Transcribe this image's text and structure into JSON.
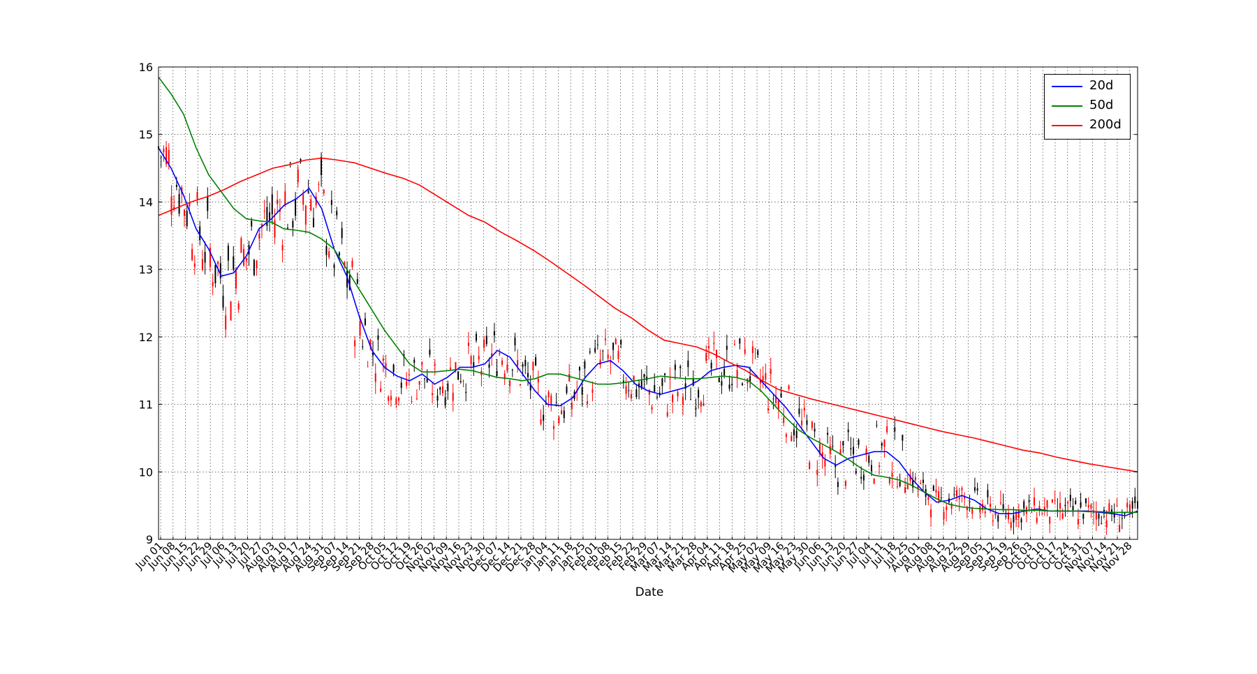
{
  "chart_data": {
    "type": "candlestick-line",
    "xlabel": "Date",
    "ylabel": "",
    "ylim": [
      9,
      16
    ],
    "yticks": [
      "9",
      "10",
      "11",
      "12",
      "13",
      "14",
      "15",
      "16"
    ],
    "grid": true,
    "legend_position": "top-right",
    "xtick_labels": [
      "Jun 01",
      "Jun 08",
      "Jun 15",
      "Jun 22",
      "Jun 29",
      "Jul 06",
      "Jul 13",
      "Jul 20",
      "Jul 27",
      "Aug 03",
      "Aug 10",
      "Aug 17",
      "Aug 24",
      "Aug 31",
      "Sep 07",
      "Sep 14",
      "Sep 21",
      "Sep 28",
      "Oct 05",
      "Oct 12",
      "Oct 19",
      "Oct 26",
      "Nov 02",
      "Nov 09",
      "Nov 16",
      "Nov 23",
      "Nov 30",
      "Dec 07",
      "Dec 14",
      "Dec 21",
      "Dec 28",
      "Jan 04",
      "Jan 11",
      "Jan 18",
      "Jan 25",
      "Feb 01",
      "Feb 08",
      "Feb 15",
      "Feb 22",
      "Feb 29",
      "Mar 07",
      "Mar 14",
      "Mar 21",
      "Mar 28",
      "Apr 04",
      "Apr 11",
      "Apr 18",
      "Apr 25",
      "May 02",
      "May 09",
      "May 16",
      "May 23",
      "May 30",
      "Jun 06",
      "Jun 13",
      "Jun 20",
      "Jun 27",
      "Jul 04",
      "Jul 11",
      "Jul 18",
      "Jul 25",
      "Aug 01",
      "Aug 08",
      "Aug 15",
      "Aug 22",
      "Aug 29",
      "Sep 05",
      "Sep 12",
      "Sep 19",
      "Sep 26",
      "Oct 03",
      "Oct 10",
      "Oct 17",
      "Oct 24",
      "Oct 31",
      "Nov 07",
      "Nov 14",
      "Nov 21",
      "Nov 28"
    ],
    "series": [
      {
        "name": "20d",
        "color": "#0000ff",
        "values": [
          14.8,
          14.5,
          14.1,
          13.6,
          13.3,
          12.9,
          12.95,
          13.2,
          13.6,
          13.75,
          13.95,
          14.05,
          14.2,
          13.9,
          13.3,
          12.9,
          12.3,
          11.8,
          11.55,
          11.42,
          11.35,
          11.45,
          11.3,
          11.4,
          11.55,
          11.55,
          11.6,
          11.8,
          11.7,
          11.45,
          11.2,
          11.0,
          10.98,
          11.1,
          11.4,
          11.6,
          11.65,
          11.5,
          11.3,
          11.2,
          11.15,
          11.2,
          11.25,
          11.35,
          11.5,
          11.55,
          11.58,
          11.55,
          11.35,
          11.15,
          10.95,
          10.7,
          10.45,
          10.2,
          10.1,
          10.2,
          10.25,
          10.3,
          10.3,
          10.15,
          9.9,
          9.7,
          9.55,
          9.58,
          9.65,
          9.58,
          9.45,
          9.38,
          9.38,
          9.42,
          9.45,
          9.42,
          9.42,
          9.42,
          9.42,
          9.4,
          9.38,
          9.35,
          9.42
        ]
      },
      {
        "name": "50d",
        "color": "#008000",
        "values": [
          15.85,
          15.6,
          15.3,
          14.8,
          14.4,
          14.15,
          13.9,
          13.75,
          13.72,
          13.7,
          13.6,
          13.58,
          13.55,
          13.45,
          13.3,
          13.0,
          12.7,
          12.4,
          12.1,
          11.85,
          11.6,
          11.48,
          11.48,
          11.5,
          11.52,
          11.5,
          11.45,
          11.4,
          11.38,
          11.35,
          11.38,
          11.45,
          11.45,
          11.4,
          11.35,
          11.3,
          11.3,
          11.32,
          11.35,
          11.38,
          11.42,
          11.4,
          11.38,
          11.38,
          11.4,
          11.42,
          11.4,
          11.35,
          11.2,
          11.0,
          10.8,
          10.62,
          10.5,
          10.4,
          10.3,
          10.18,
          10.05,
          9.95,
          9.92,
          9.88,
          9.8,
          9.7,
          9.6,
          9.52,
          9.48,
          9.46,
          9.45,
          9.44,
          9.44,
          9.43,
          9.43,
          9.42,
          9.42,
          9.42,
          9.41,
          9.41,
          9.4,
          9.4,
          9.4
        ]
      },
      {
        "name": "200d",
        "color": "#ff0000",
        "values": [
          13.8,
          13.9,
          14.0,
          14.08,
          14.18,
          14.3,
          14.4,
          14.5,
          14.55,
          14.62,
          14.65,
          14.62,
          14.58,
          14.5,
          14.42,
          14.35,
          14.25,
          14.1,
          13.95,
          13.8,
          13.7,
          13.55,
          13.42,
          13.28,
          13.12,
          12.95,
          12.78,
          12.6,
          12.42,
          12.28,
          12.1,
          11.95,
          11.9,
          11.85,
          11.75,
          11.62,
          11.5,
          11.35,
          11.22,
          11.15,
          11.08,
          11.02,
          10.96,
          10.9,
          10.84,
          10.78,
          10.72,
          10.66,
          10.6,
          10.55,
          10.5,
          10.44,
          10.38,
          10.32,
          10.28,
          10.22,
          10.17,
          10.12,
          10.08,
          10.04,
          10.0
        ]
      }
    ]
  },
  "legend": {
    "items": [
      {
        "label": "20d",
        "color": "#0000ff"
      },
      {
        "label": "50d",
        "color": "#008000"
      },
      {
        "label": "200d",
        "color": "#ff0000"
      }
    ]
  },
  "axis": {
    "xlabel": "Date"
  }
}
